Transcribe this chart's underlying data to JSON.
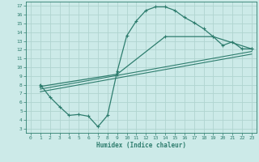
{
  "background_color": "#cceae8",
  "grid_color": "#b0d4d0",
  "line_color": "#2e7d6e",
  "xlabel": "Humidex (Indice chaleur)",
  "xlim": [
    -0.5,
    23.5
  ],
  "ylim": [
    2.5,
    17.5
  ],
  "xticks": [
    0,
    1,
    2,
    3,
    4,
    5,
    6,
    7,
    8,
    9,
    10,
    11,
    12,
    13,
    14,
    15,
    16,
    17,
    18,
    19,
    20,
    21,
    22,
    23
  ],
  "yticks": [
    3,
    4,
    5,
    6,
    7,
    8,
    9,
    10,
    11,
    12,
    13,
    14,
    15,
    16,
    17
  ],
  "line1_x": [
    1,
    2,
    3,
    4,
    5,
    6,
    7,
    8,
    9,
    10,
    11,
    12,
    13,
    14,
    15,
    16,
    17,
    18,
    19,
    20,
    21,
    22,
    23
  ],
  "line1_y": [
    8.0,
    6.6,
    5.5,
    4.5,
    4.6,
    4.4,
    3.2,
    4.5,
    9.5,
    13.6,
    15.3,
    16.5,
    16.9,
    16.9,
    16.5,
    15.7,
    15.1,
    14.4,
    13.5,
    12.5,
    12.9,
    12.1,
    12.1
  ],
  "line2_x": [
    1,
    9,
    14,
    19,
    23
  ],
  "line2_y": [
    7.8,
    9.2,
    13.5,
    13.5,
    12.1
  ],
  "line3_x": [
    1,
    23
  ],
  "line3_y": [
    7.5,
    11.8
  ],
  "line4_x": [
    1,
    23
  ],
  "line4_y": [
    7.2,
    11.5
  ]
}
